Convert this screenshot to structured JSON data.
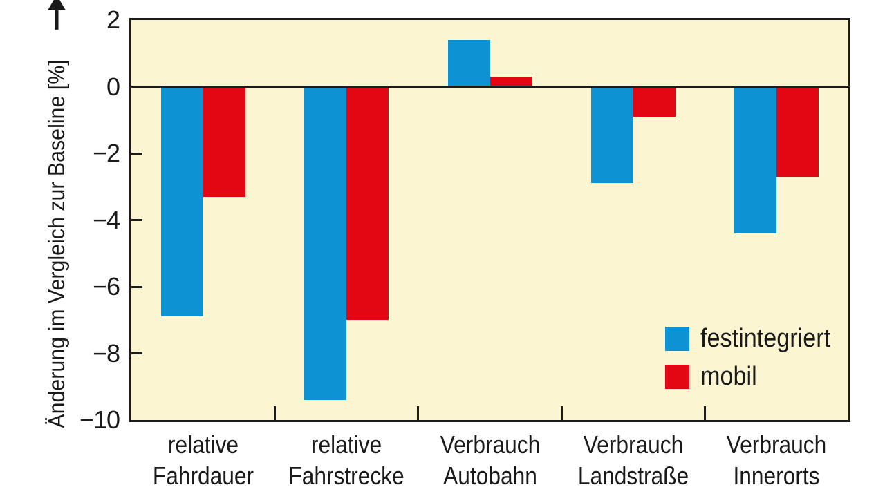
{
  "chart_data": {
    "type": "bar",
    "title": "",
    "ylabel": "Änderung im Vergleich zur Baseline [%]",
    "xlabel": "",
    "ylim": [
      -10,
      2
    ],
    "yticks": [
      2,
      0,
      -2,
      -4,
      -6,
      -8,
      -10
    ],
    "categories": [
      "relative\nFahrdauer",
      "relative\nFahrstrecke",
      "Verbrauch\nAutobahn",
      "Verbrauch\nLandstraße",
      "Verbrauch\nInnerorts"
    ],
    "series": [
      {
        "name": "festintegriert",
        "color": "#0d93d3",
        "values": [
          -6.9,
          -9.4,
          1.4,
          -2.9,
          -4.4
        ]
      },
      {
        "name": "mobil",
        "color": "#e30613",
        "values": [
          -3.3,
          -7.0,
          0.3,
          -0.9,
          -2.7
        ]
      }
    ],
    "legend_position": "inside-bottom-right",
    "grid": false,
    "plot_background": "#fbf5d2",
    "axis_color": "#1c1c1c",
    "up_arrow_icon": "up-arrow"
  }
}
